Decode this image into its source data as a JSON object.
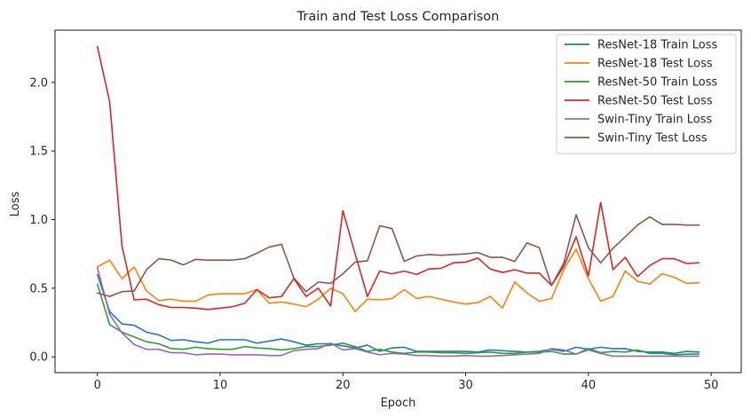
{
  "chart_data": {
    "type": "line",
    "title": "Train and Test Loss Comparison",
    "xlabel": "Epoch",
    "ylabel": "Loss",
    "xlim": [
      -3.45,
      52.45
    ],
    "ylim": [
      -0.115,
      2.38
    ],
    "xticks": [
      0,
      10,
      20,
      30,
      40,
      50
    ],
    "xtick_labels": [
      "0",
      "10",
      "20",
      "30",
      "40",
      "50"
    ],
    "yticks": [
      0.0,
      0.5,
      1.0,
      1.5,
      2.0
    ],
    "ytick_labels": [
      "0.0",
      "0.5",
      "1.0",
      "1.5",
      "2.0"
    ],
    "grid": false,
    "legend_position": "top-right",
    "x": [
      0,
      1,
      2,
      3,
      4,
      5,
      6,
      7,
      8,
      9,
      10,
      11,
      12,
      13,
      14,
      15,
      16,
      17,
      18,
      19,
      20,
      21,
      22,
      23,
      24,
      25,
      26,
      27,
      28,
      29,
      30,
      31,
      32,
      33,
      34,
      35,
      36,
      37,
      38,
      39,
      40,
      41,
      42,
      43,
      44,
      45,
      46,
      47,
      48,
      49
    ],
    "series": [
      {
        "name": "ResNet-18 Train Loss",
        "color": "#1f77b4",
        "values": [
          0.6,
          0.33,
          0.24,
          0.23,
          0.18,
          0.16,
          0.12,
          0.125,
          0.11,
          0.1,
          0.125,
          0.125,
          0.125,
          0.1,
          0.115,
          0.13,
          0.11,
          0.085,
          0.095,
          0.095,
          0.08,
          0.065,
          0.085,
          0.04,
          0.065,
          0.07,
          0.04,
          0.04,
          0.04,
          0.04,
          0.04,
          0.035,
          0.05,
          0.045,
          0.04,
          0.035,
          0.04,
          0.055,
          0.04,
          0.07,
          0.055,
          0.07,
          0.06,
          0.06,
          0.04,
          0.035,
          0.035,
          0.025,
          0.04,
          0.035
        ]
      },
      {
        "name": "ResNet-18 Test Loss",
        "color": "#ff7f0e",
        "values": [
          0.655,
          0.705,
          0.57,
          0.655,
          0.48,
          0.41,
          0.42,
          0.405,
          0.405,
          0.45,
          0.46,
          0.46,
          0.46,
          0.49,
          0.39,
          0.4,
          0.385,
          0.365,
          0.42,
          0.5,
          0.46,
          0.33,
          0.42,
          0.415,
          0.425,
          0.49,
          0.425,
          0.44,
          0.42,
          0.4,
          0.385,
          0.395,
          0.44,
          0.355,
          0.545,
          0.465,
          0.405,
          0.425,
          0.635,
          0.785,
          0.57,
          0.405,
          0.44,
          0.625,
          0.55,
          0.53,
          0.605,
          0.58,
          0.535,
          0.54
        ]
      },
      {
        "name": "ResNet-50 Train Loss",
        "color": "#2ca02c",
        "values": [
          0.53,
          0.235,
          0.18,
          0.145,
          0.11,
          0.095,
          0.06,
          0.055,
          0.07,
          0.06,
          0.055,
          0.055,
          0.075,
          0.065,
          0.06,
          0.05,
          0.06,
          0.075,
          0.075,
          0.085,
          0.1,
          0.075,
          0.04,
          0.055,
          0.035,
          0.025,
          0.035,
          0.035,
          0.03,
          0.03,
          0.025,
          0.03,
          0.035,
          0.025,
          0.025,
          0.035,
          0.035,
          0.04,
          0.02,
          0.02,
          0.06,
          0.03,
          0.04,
          0.035,
          0.05,
          0.025,
          0.025,
          0.015,
          0.02,
          0.02
        ]
      },
      {
        "name": "ResNet-50 Test Loss",
        "color": "#d62728",
        "values": [
          2.26,
          1.86,
          0.81,
          0.415,
          0.42,
          0.38,
          0.36,
          0.36,
          0.355,
          0.345,
          0.355,
          0.365,
          0.39,
          0.49,
          0.43,
          0.44,
          0.57,
          0.44,
          0.5,
          0.37,
          1.065,
          0.75,
          0.44,
          0.625,
          0.605,
          0.625,
          0.6,
          0.64,
          0.645,
          0.685,
          0.69,
          0.72,
          0.64,
          0.615,
          0.635,
          0.61,
          0.61,
          0.52,
          0.66,
          0.875,
          0.59,
          1.125,
          0.635,
          0.725,
          0.585,
          0.665,
          0.715,
          0.715,
          0.68,
          0.685
        ]
      },
      {
        "name": "Swin-Tiny Train Loss",
        "color": "#9467bd",
        "values": [
          0.65,
          0.31,
          0.175,
          0.09,
          0.055,
          0.055,
          0.03,
          0.03,
          0.015,
          0.02,
          0.02,
          0.015,
          0.015,
          0.015,
          0.01,
          0.01,
          0.045,
          0.055,
          0.06,
          0.1,
          0.05,
          0.06,
          0.035,
          0.015,
          0.025,
          0.02,
          0.01,
          0.01,
          0.005,
          0.005,
          0.01,
          0.005,
          0.005,
          0.01,
          0.015,
          0.02,
          0.025,
          0.06,
          0.05,
          0.02,
          0.05,
          0.025,
          0.005,
          0.005,
          0.005,
          0.005,
          0.005,
          0.005,
          0.005,
          0.005
        ]
      },
      {
        "name": "Swin-Tiny Test Loss",
        "color": "#8c564b",
        "values": [
          0.465,
          0.44,
          0.475,
          0.48,
          0.635,
          0.715,
          0.705,
          0.67,
          0.71,
          0.705,
          0.705,
          0.705,
          0.715,
          0.755,
          0.8,
          0.82,
          0.575,
          0.475,
          0.545,
          0.535,
          0.605,
          0.69,
          0.7,
          0.955,
          0.935,
          0.695,
          0.735,
          0.745,
          0.74,
          0.745,
          0.75,
          0.76,
          0.725,
          0.725,
          0.695,
          0.83,
          0.795,
          0.52,
          0.685,
          1.035,
          0.795,
          0.685,
          0.79,
          0.875,
          0.96,
          1.02,
          0.965,
          0.965,
          0.96,
          0.96
        ]
      }
    ]
  }
}
